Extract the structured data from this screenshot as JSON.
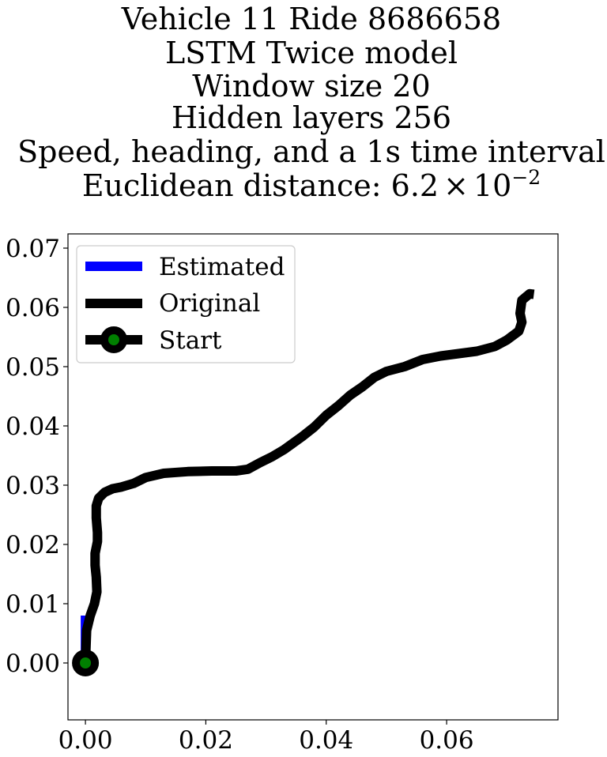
{
  "chart_data": {
    "type": "line",
    "title_lines": [
      "Vehicle 11 Ride 8686658",
      "LSTM Twice model",
      "Window size 20",
      "Hidden layers 256",
      "Speed, heading, and a 1s time interval"
    ],
    "title_distance_prefix": "Euclidean distance: 6.2",
    "title_distance_times": "×",
    "title_distance_base": "10",
    "title_distance_exponent": "−2",
    "xlim": [
      -0.0029,
      0.0785
    ],
    "ylim": [
      -0.0096,
      0.0724
    ],
    "x_ticks": [
      0.0,
      0.02,
      0.04,
      0.06
    ],
    "x_tick_labels": [
      "0.00",
      "0.02",
      "0.04",
      "0.06"
    ],
    "y_ticks": [
      0.0,
      0.01,
      0.02,
      0.03,
      0.04,
      0.05,
      0.06,
      0.07
    ],
    "y_tick_labels": [
      "0.00",
      "0.01",
      "0.02",
      "0.03",
      "0.04",
      "0.05",
      "0.06",
      "0.07"
    ],
    "grid": false,
    "legend_position": "upper-left",
    "series": [
      {
        "name": "Estimated",
        "color": "#0000ff",
        "x": [
          0.0,
          0.0,
          0.0
        ],
        "y": [
          0.0,
          0.004,
          0.008
        ]
      },
      {
        "name": "Original",
        "color": "#000000",
        "x": [
          0.0,
          0.0001,
          0.0002,
          0.0008,
          0.0015,
          0.0019,
          0.0018,
          0.0016,
          0.0016,
          0.002,
          0.002,
          0.0018,
          0.0018,
          0.0022,
          0.0032,
          0.0045,
          0.006,
          0.008,
          0.01,
          0.013,
          0.017,
          0.021,
          0.025,
          0.027,
          0.029,
          0.031,
          0.033,
          0.036,
          0.038,
          0.04,
          0.042,
          0.044,
          0.046,
          0.048,
          0.05,
          0.053,
          0.056,
          0.059,
          0.062,
          0.065,
          0.068,
          0.07,
          0.072,
          0.0725,
          0.0722,
          0.0725,
          0.0738,
          0.0745
        ],
        "y": [
          0.0,
          0.003,
          0.0055,
          0.008,
          0.01,
          0.012,
          0.0145,
          0.0165,
          0.0185,
          0.0205,
          0.022,
          0.0245,
          0.0265,
          0.0278,
          0.0288,
          0.0294,
          0.0297,
          0.0303,
          0.0313,
          0.032,
          0.0323,
          0.0324,
          0.0324,
          0.0327,
          0.0338,
          0.0348,
          0.036,
          0.0382,
          0.0398,
          0.0418,
          0.0434,
          0.0452,
          0.0466,
          0.0482,
          0.0492,
          0.05,
          0.0512,
          0.0518,
          0.0522,
          0.0526,
          0.0534,
          0.0545,
          0.056,
          0.0575,
          0.059,
          0.0612,
          0.0623,
          0.0622
        ]
      }
    ],
    "start_point": {
      "name": "Start",
      "x": 0.0,
      "y": 0.0,
      "edge_color": "#000000",
      "face_color": "#008000"
    }
  }
}
